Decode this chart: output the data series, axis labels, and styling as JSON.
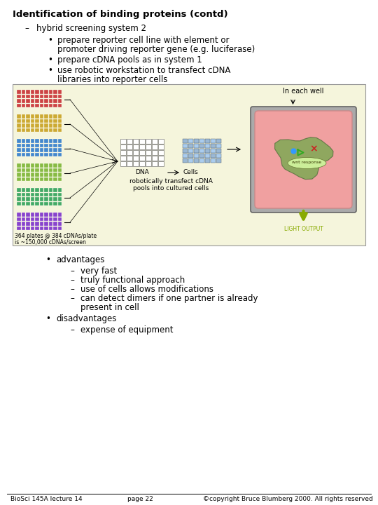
{
  "title": "Identification of binding proteins (contd)",
  "background_color": "#ffffff",
  "title_fontsize": 9.5,
  "body_fontsize": 8.5,
  "sub_fontsize": 8.5,
  "diagram_fontsize": 6.5,
  "small_fontsize": 5.5,
  "footer_fontsize": 6.5,
  "text_color": "#000000",
  "bullet1_line1": "prepare reporter cell line with element or",
  "bullet1_line2": "promoter driving reporter gene (e.g. luciferase)",
  "bullet2": "prepare cDNA pools as in system 1",
  "bullet3_line1": "use robotic workstation to transfect cDNA",
  "bullet3_line2": "libraries into reporter cells",
  "dash_text": "hybrid screening system 2",
  "advantages_header": "advantages",
  "advantages": [
    "very fast",
    "truly functional approach",
    "use of cells allows modifications",
    [
      "can detect dimers if one partner is already",
      "present in cell"
    ]
  ],
  "disadvantages_header": "disadvantages",
  "disadvantages": [
    "expense of equipment"
  ],
  "footer_left": "BioSci 145A lecture 14",
  "footer_center": "page 22",
  "footer_right": "©copyright Bruce Blumberg 2000. All rights reserved",
  "plate_colors": [
    "#cc4444",
    "#ccaa33",
    "#4488cc",
    "#88bb44",
    "#44aa66",
    "#8844cc"
  ],
  "diagram_bg": "#f5f5dc",
  "well_bg": "#888888",
  "well_inner": "#f0a0a0",
  "cell_green": "#66aa44",
  "light_output_color": "#88aa00"
}
